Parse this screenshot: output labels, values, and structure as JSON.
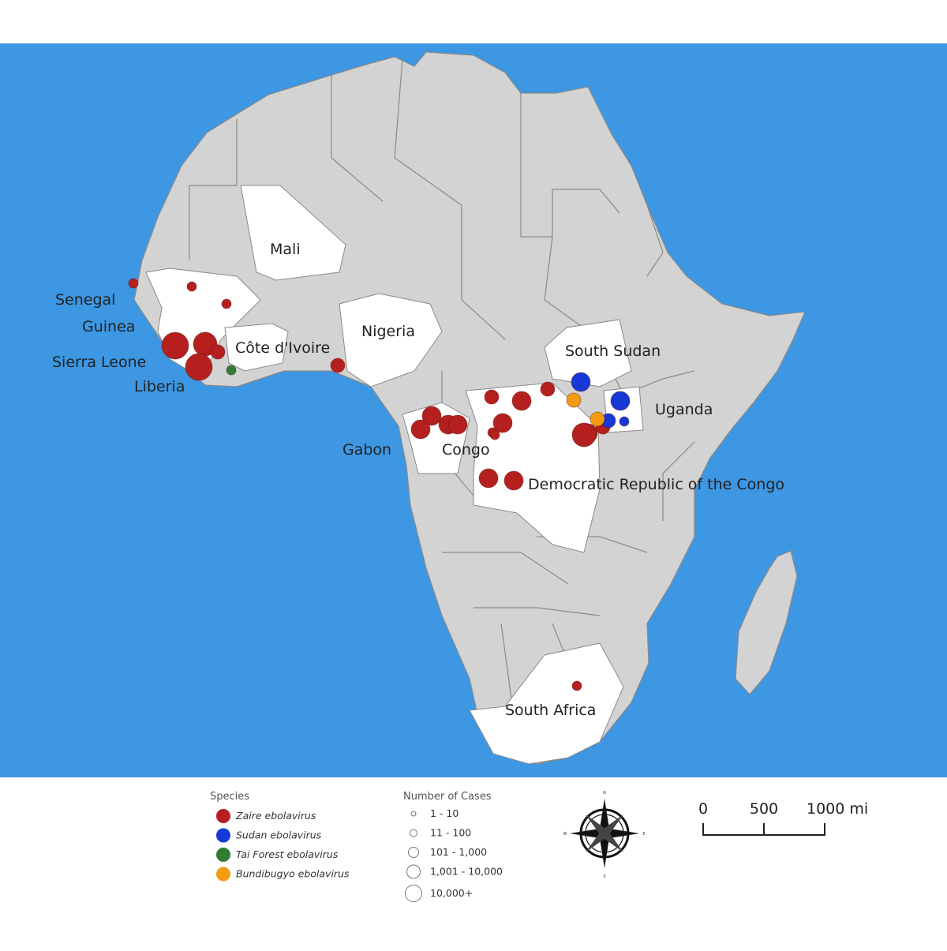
{
  "colors": {
    "ocean": "#3d97e3",
    "land_grey": "#d3d3d3",
    "land_highlight": "#ffffff",
    "border": "#8a8a8a",
    "zaire": "#b5201e",
    "sudan": "#1538d6",
    "tai_forest": "#2e7d32",
    "bundibugyo": "#f39c12"
  },
  "country_labels": [
    "Mali",
    "Senegal",
    "Guinea",
    "Sierra Leone",
    "Liberia",
    "Côte d'Ivoire",
    "Nigeria",
    "South Sudan",
    "Uganda",
    "Gabon",
    "Congo",
    "Democratic Republic of the Congo",
    "South Africa"
  ],
  "outbreaks": [
    {
      "species": "zaire",
      "cases": "1 - 10"
    },
    {
      "species": "zaire",
      "cases": "1 - 10"
    },
    {
      "species": "zaire",
      "cases": "1 - 10"
    },
    {
      "species": "zaire",
      "cases": "10,000+"
    },
    {
      "species": "zaire",
      "cases": "1,001 - 10,000"
    },
    {
      "species": "zaire",
      "cases": "10,000+"
    },
    {
      "species": "zaire",
      "cases": "11 - 100"
    },
    {
      "species": "tai_forest",
      "cases": "1 - 10"
    },
    {
      "species": "zaire",
      "cases": "11 - 100"
    },
    {
      "species": "zaire",
      "cases": "101 - 1,000"
    },
    {
      "species": "zaire",
      "cases": "101 - 1,000"
    },
    {
      "species": "zaire",
      "cases": "101 - 1,000"
    },
    {
      "species": "zaire",
      "cases": "101 - 1,000"
    },
    {
      "species": "zaire",
      "cases": "11 - 100"
    },
    {
      "species": "zaire",
      "cases": "1 - 10"
    },
    {
      "species": "zaire",
      "cases": "101 - 1,000"
    },
    {
      "species": "zaire",
      "cases": "101 - 1,000"
    },
    {
      "species": "zaire",
      "cases": "11 - 100"
    },
    {
      "species": "zaire",
      "cases": "1 - 10"
    },
    {
      "species": "zaire",
      "cases": "101 - 1,000"
    },
    {
      "species": "zaire",
      "cases": "101 - 1,000"
    },
    {
      "species": "zaire",
      "cases": "101 - 1,000"
    },
    {
      "species": "zaire",
      "cases": "1,001 - 10,000"
    },
    {
      "species": "zaire",
      "cases": "11 - 100"
    },
    {
      "species": "sudan",
      "cases": "101 - 1,000"
    },
    {
      "species": "bundibugyo",
      "cases": "11 - 100"
    },
    {
      "species": "sudan",
      "cases": "101 - 1,000"
    },
    {
      "species": "sudan",
      "cases": "11 - 100"
    },
    {
      "species": "sudan",
      "cases": "1 - 10"
    },
    {
      "species": "bundibugyo",
      "cases": "11 - 100"
    },
    {
      "species": "zaire",
      "cases": "1 - 10"
    }
  ],
  "legend": {
    "species_title": "Species",
    "species": [
      {
        "label": "Zaire ebolavirus",
        "key": "zaire"
      },
      {
        "label": "Sudan ebolavirus",
        "key": "sudan"
      },
      {
        "label": "Tai Forest ebolavirus",
        "key": "tai_forest"
      },
      {
        "label": "Bundibugyo ebolavirus",
        "key": "bundibugyo"
      }
    ],
    "cases_title": "Number of Cases",
    "cases": [
      "1 - 10",
      "11 - 100",
      "101 - 1,000",
      "1,001 - 10,000",
      "10,000+"
    ]
  },
  "compass": {
    "n": "N",
    "s": "S",
    "e": "E",
    "w": "W"
  },
  "scale_bar": {
    "labels": [
      "0",
      "500",
      "1000 mi"
    ]
  }
}
